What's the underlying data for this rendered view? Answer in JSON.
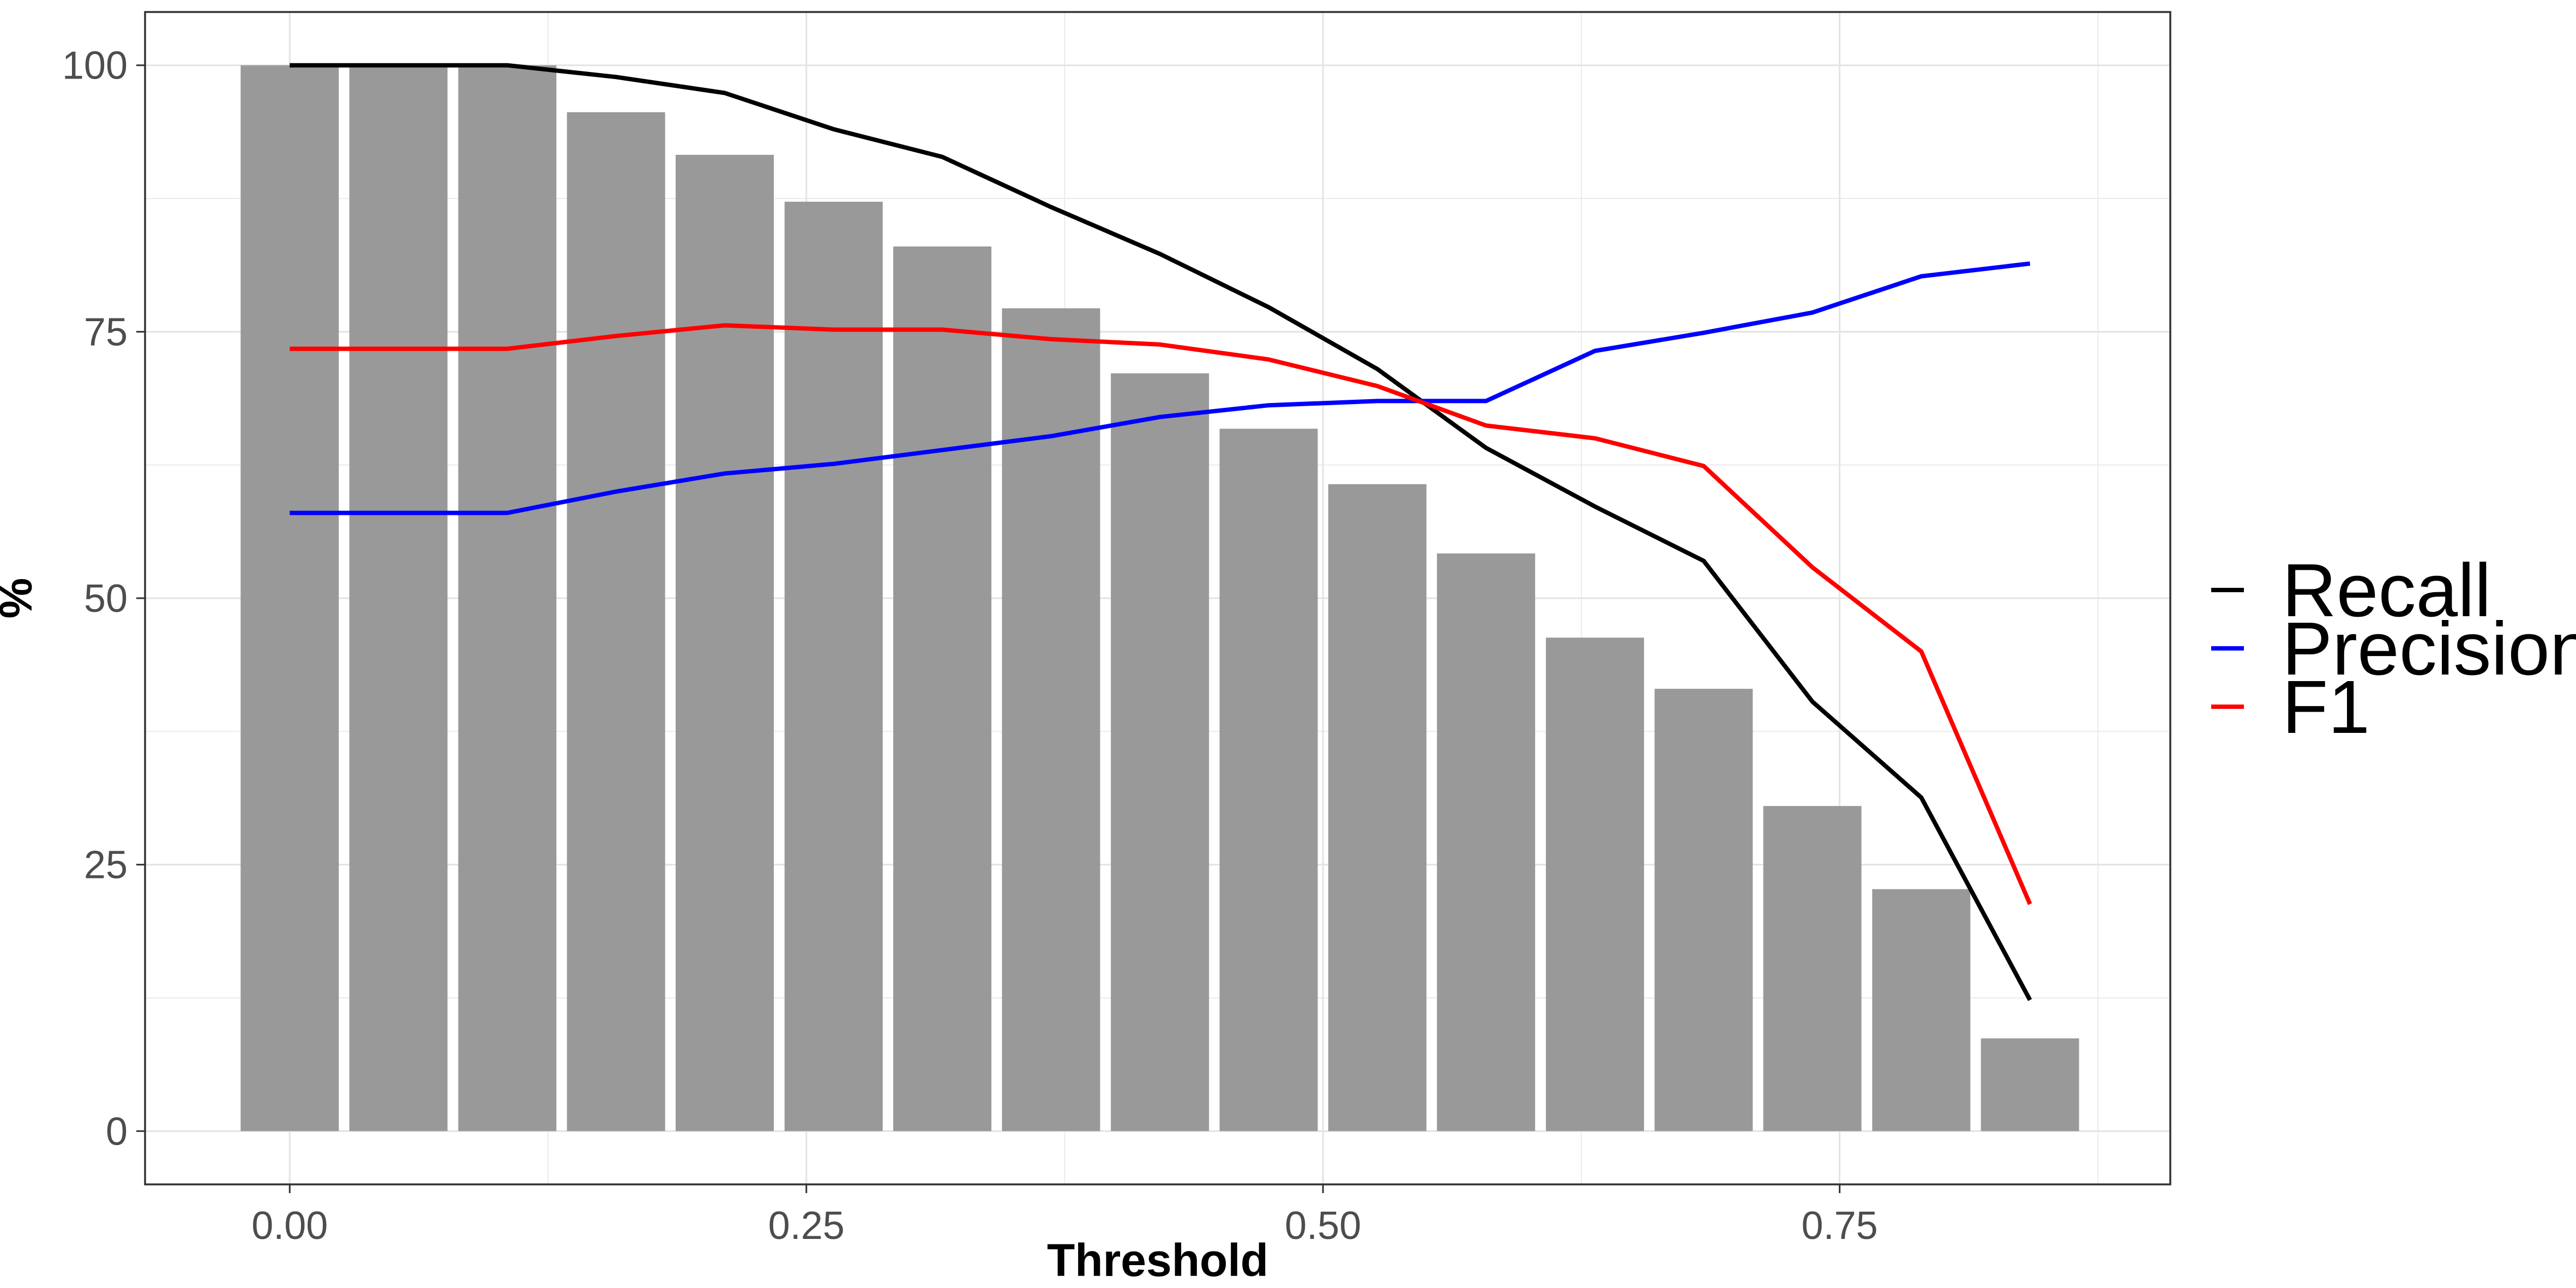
{
  "chart_data": {
    "type": "bar",
    "xlabel": "Threshold",
    "ylabel": "%",
    "xlim": [
      -0.07,
      0.91
    ],
    "ylim": [
      -5,
      105
    ],
    "x_ticks": [
      0.0,
      0.25,
      0.5,
      0.75
    ],
    "x_tick_labels": [
      "0.00",
      "0.25",
      "0.50",
      "0.75"
    ],
    "y_ticks": [
      0,
      25,
      50,
      75,
      100
    ],
    "y_tick_labels": [
      "0",
      "25",
      "50",
      "75",
      "100"
    ],
    "grid": true,
    "legend_position": "right",
    "bar_width": 0.0475,
    "bar_color": "#999999",
    "bars": {
      "x": [
        0.0,
        0.0526,
        0.1053,
        0.1579,
        0.2105,
        0.2632,
        0.3158,
        0.3684,
        0.4211,
        0.4737,
        0.5263,
        0.5789,
        0.6316,
        0.6842,
        0.7368,
        0.7895,
        0.8421
      ],
      "values": [
        100,
        100,
        100,
        95.6,
        91.6,
        87.2,
        83.0,
        77.2,
        71.1,
        65.9,
        60.7,
        54.2,
        46.3,
        41.5,
        30.5,
        22.7,
        8.7
      ]
    },
    "series": [
      {
        "name": "Recall",
        "color": "#000000",
        "x": [
          0.0,
          0.0526,
          0.1053,
          0.1579,
          0.2105,
          0.2632,
          0.3158,
          0.3684,
          0.4211,
          0.4737,
          0.5263,
          0.5789,
          0.6316,
          0.6842,
          0.7368,
          0.7895,
          0.8421
        ],
        "values": [
          100,
          100,
          100,
          98.9,
          97.4,
          94.0,
          91.4,
          86.7,
          82.3,
          77.3,
          71.5,
          64.1,
          58.6,
          53.5,
          40.3,
          31.3,
          12.3
        ]
      },
      {
        "name": "Precision",
        "color": "#0000ff",
        "x": [
          0.0,
          0.0526,
          0.1053,
          0.1579,
          0.2105,
          0.2632,
          0.3158,
          0.3684,
          0.4211,
          0.4737,
          0.5263,
          0.5789,
          0.6316,
          0.6842,
          0.7368,
          0.7895,
          0.8421
        ],
        "values": [
          58.0,
          58.0,
          58.0,
          60.0,
          61.7,
          62.6,
          63.9,
          65.2,
          67.0,
          68.1,
          68.5,
          68.5,
          73.2,
          74.9,
          76.8,
          80.2,
          81.4
        ]
      },
      {
        "name": "F1",
        "color": "#ff0000",
        "x": [
          0.0,
          0.0526,
          0.1053,
          0.1579,
          0.2105,
          0.2632,
          0.3158,
          0.3684,
          0.4211,
          0.4737,
          0.5263,
          0.5789,
          0.6316,
          0.6842,
          0.7368,
          0.7895,
          0.8421
        ],
        "values": [
          73.4,
          73.4,
          73.4,
          74.6,
          75.6,
          75.2,
          75.2,
          74.3,
          73.8,
          72.4,
          69.9,
          66.2,
          65.0,
          62.4,
          52.9,
          45.0,
          21.3
        ]
      }
    ]
  }
}
